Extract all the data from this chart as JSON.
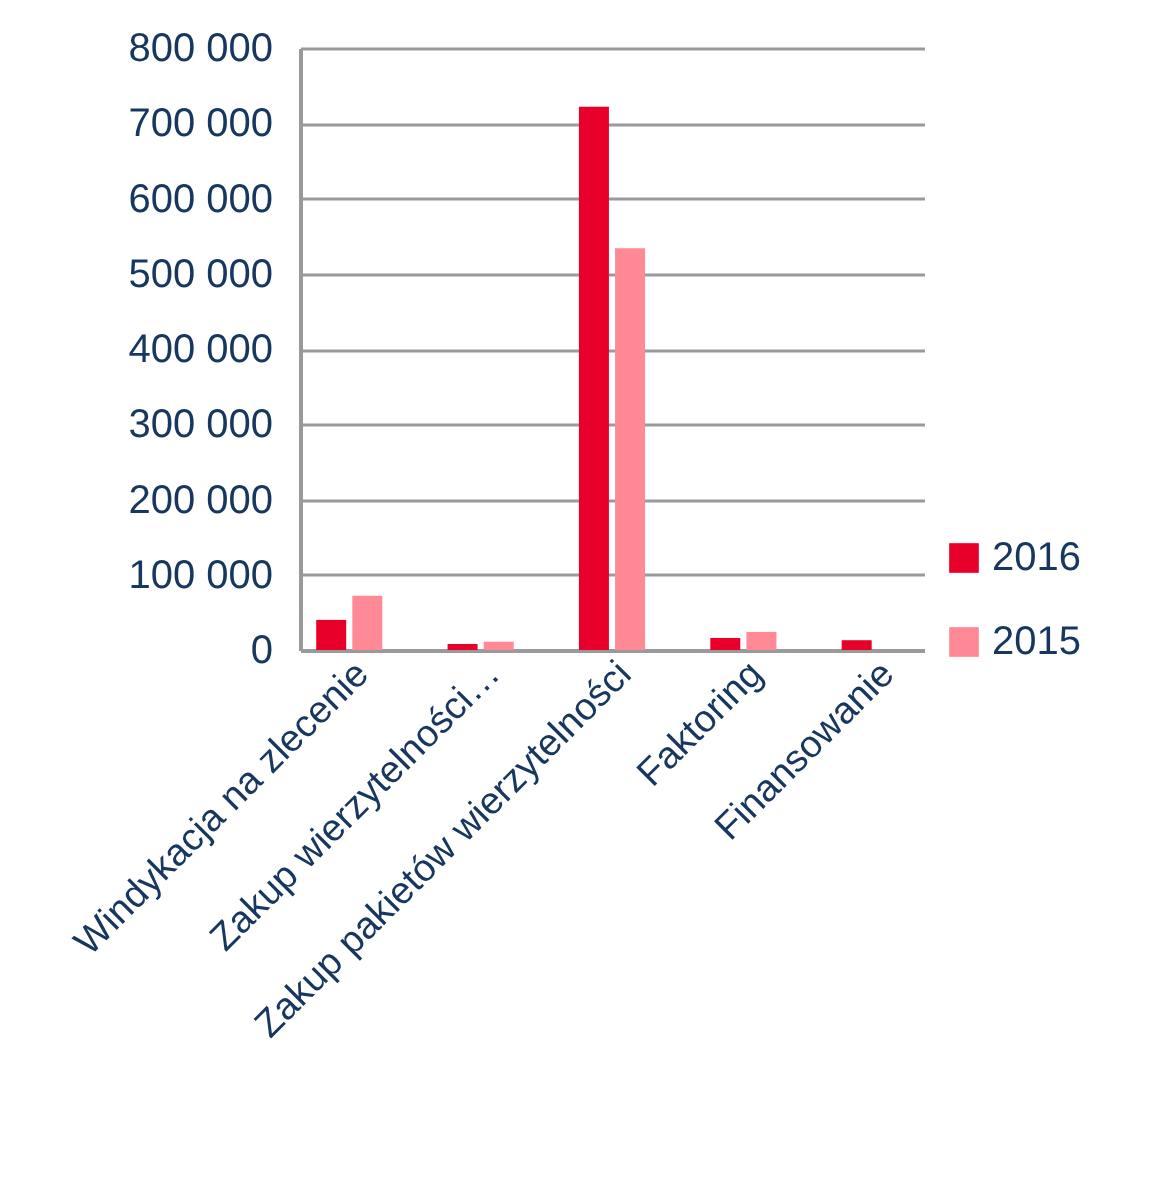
{
  "chart_data": {
    "type": "bar",
    "categories": [
      "Windykacja na zlecenie",
      "Zakup wierzytelności…",
      "Zakup pakietów wierzytelności",
      "Faktoring",
      "Finansowanie"
    ],
    "series": [
      {
        "name": "2016",
        "color": "#e8002a",
        "values": [
          40000,
          8000,
          722000,
          16000,
          13000
        ]
      },
      {
        "name": "2015",
        "color": "#ff8a95",
        "values": [
          72000,
          11000,
          534000,
          24000,
          null
        ]
      }
    ],
    "ylim": [
      0,
      800000
    ],
    "yticks": [
      {
        "value": 0,
        "label": "0"
      },
      {
        "value": 100000,
        "label": "100 000"
      },
      {
        "value": 200000,
        "label": "200 000"
      },
      {
        "value": 300000,
        "label": "300 000"
      },
      {
        "value": 400000,
        "label": "400 000"
      },
      {
        "value": 500000,
        "label": "500 000"
      },
      {
        "value": 600000,
        "label": "600 000"
      },
      {
        "value": 700000,
        "label": "700 000"
      },
      {
        "value": 800000,
        "label": "800 000"
      }
    ],
    "grid": "y",
    "legend": "right"
  }
}
